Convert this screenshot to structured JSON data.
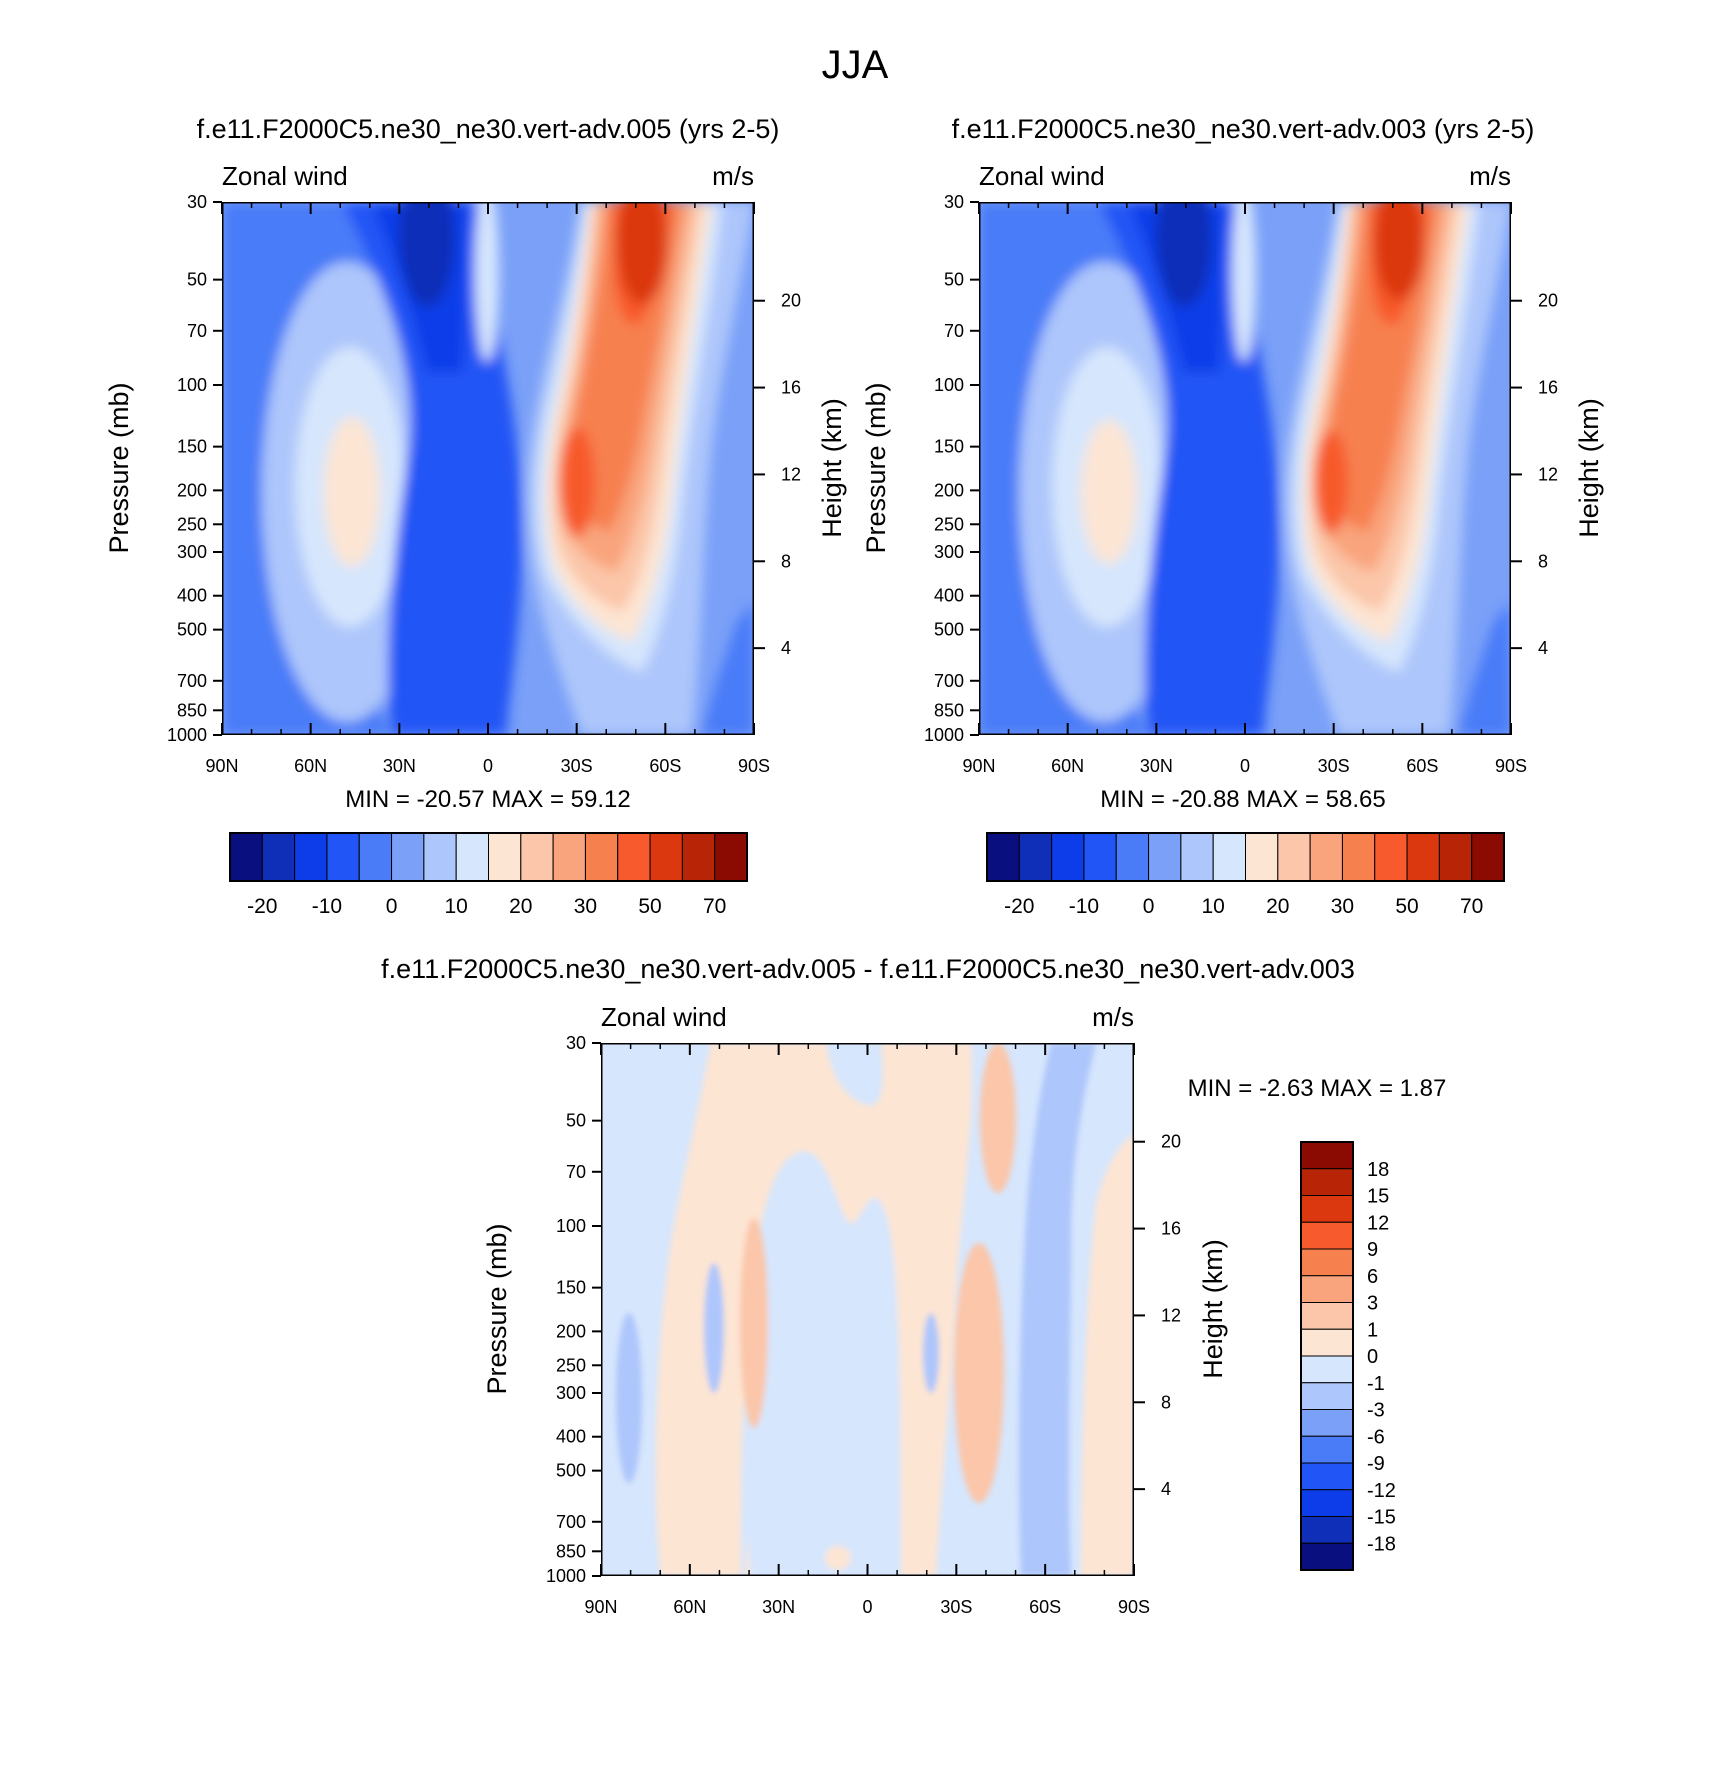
{
  "title": "JJA",
  "palette": [
    "#0a0f80",
    "#0f2fb8",
    "#0c3de8",
    "#2155f5",
    "#4a7cf8",
    "#7aa0f8",
    "#adc6fb",
    "#d6e6fd",
    "#fde5d3",
    "#fbc6a9",
    "#f9a47d",
    "#f7804f",
    "#f75a2c",
    "#dc3810",
    "#b82506",
    "#8b0a02"
  ],
  "chart_data": [
    {
      "type": "contour",
      "title": "f.e11.F2000C5.ne30_ne30.vert-adv.005 (yrs 2-5)",
      "left_label": "Zonal wind",
      "right_label": "m/s",
      "ylabel": "Pressure (mb)",
      "ylabel2": "Height (km)",
      "xlim": [
        90,
        -90
      ],
      "ylim": [
        1000,
        30
      ],
      "x_ticks": [
        "90N",
        "60N",
        "30N",
        "0",
        "30S",
        "60S",
        "90S"
      ],
      "y_ticks": [
        "30",
        "50",
        "70",
        "100",
        "150",
        "200",
        "250",
        "300",
        "400",
        "500",
        "700",
        "850",
        "1000"
      ],
      "y2_ticks": [
        "4",
        "8",
        "12",
        "16",
        "20"
      ],
      "stats": "MIN = -20.57  MAX =  59.12",
      "colorbar_labels": [
        "-20",
        "-10",
        "0",
        "10",
        "20",
        "30",
        "50",
        "70"
      ],
      "jet_peak": 59.12,
      "min_value": -20.57
    },
    {
      "type": "contour",
      "title": "f.e11.F2000C5.ne30_ne30.vert-adv.003 (yrs 2-5)",
      "left_label": "Zonal wind",
      "right_label": "m/s",
      "ylabel": "Pressure (mb)",
      "ylabel2": "Height (km)",
      "xlim": [
        90,
        -90
      ],
      "ylim": [
        1000,
        30
      ],
      "x_ticks": [
        "90N",
        "60N",
        "30N",
        "0",
        "30S",
        "60S",
        "90S"
      ],
      "y_ticks": [
        "30",
        "50",
        "70",
        "100",
        "150",
        "200",
        "250",
        "300",
        "400",
        "500",
        "700",
        "850",
        "1000"
      ],
      "y2_ticks": [
        "4",
        "8",
        "12",
        "16",
        "20"
      ],
      "stats": "MIN = -20.88  MAX =  58.65",
      "colorbar_labels": [
        "-20",
        "-10",
        "0",
        "10",
        "20",
        "30",
        "50",
        "70"
      ],
      "jet_peak": 58.65,
      "min_value": -20.88
    },
    {
      "type": "contour-difference",
      "title": "f.e11.F2000C5.ne30_ne30.vert-adv.005 - f.e11.F2000C5.ne30_ne30.vert-adv.003",
      "left_label": "Zonal wind",
      "right_label": "m/s",
      "ylabel": "Pressure (mb)",
      "ylabel2": "Height (km)",
      "xlim": [
        90,
        -90
      ],
      "ylim": [
        1000,
        30
      ],
      "x_ticks": [
        "90N",
        "60N",
        "30N",
        "0",
        "30S",
        "60S",
        "90S"
      ],
      "y_ticks": [
        "30",
        "50",
        "70",
        "100",
        "150",
        "200",
        "250",
        "300",
        "400",
        "500",
        "700",
        "850",
        "1000"
      ],
      "y2_ticks": [
        "4",
        "8",
        "12",
        "16",
        "20"
      ],
      "stats": "MIN =  -2.63  MAX =   1.87",
      "colorbar_labels": [
        "18",
        "15",
        "12",
        "9",
        "6",
        "3",
        "1",
        "0",
        "-1",
        "-3",
        "-6",
        "-9",
        "-12",
        "-15",
        "-18"
      ]
    }
  ]
}
